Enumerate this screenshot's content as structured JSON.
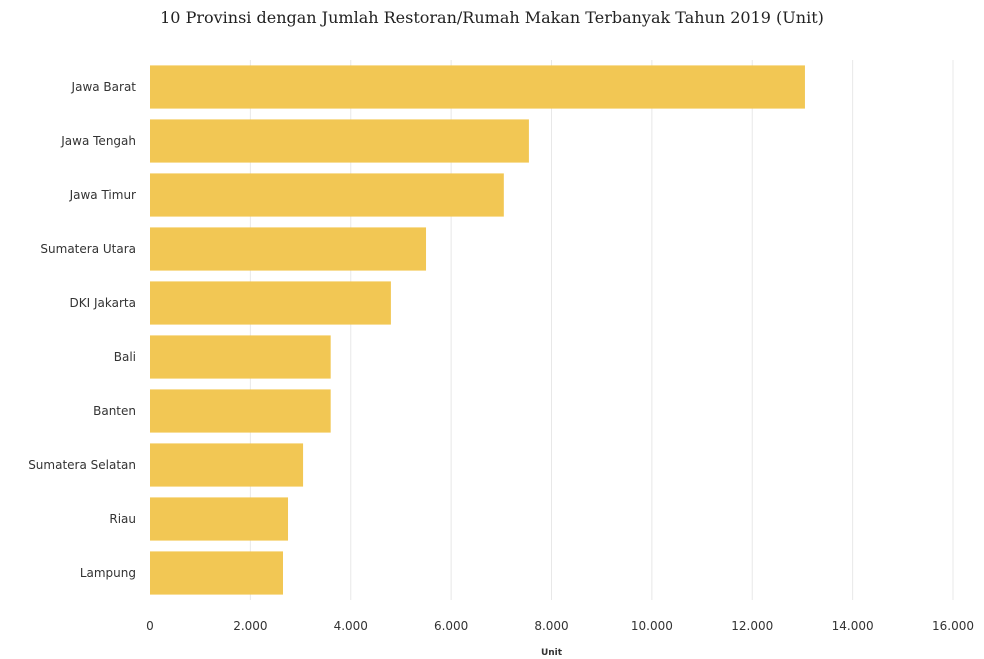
{
  "chart_data": {
    "type": "bar",
    "orientation": "horizontal",
    "title": "10 Provinsi dengan Jumlah Restoran/Rumah Makan Terbanyak Tahun 2019 (Unit)",
    "xlabel": "Unit",
    "ylabel": "",
    "categories": [
      "Jawa Barat",
      "Jawa Tengah",
      "Jawa Timur",
      "Sumatera Utara",
      "DKI Jakarta",
      "Bali",
      "Banten",
      "Sumatera Selatan",
      "Riau",
      "Lampung"
    ],
    "values": [
      13050,
      7550,
      7050,
      5500,
      4800,
      3600,
      3600,
      3050,
      2750,
      2650
    ],
    "xlim": [
      0,
      16000
    ],
    "xticks": [
      0,
      2000,
      4000,
      6000,
      8000,
      10000,
      12000,
      14000,
      16000
    ],
    "xtick_labels": [
      "0",
      "2.000",
      "4.000",
      "6.000",
      "8.000",
      "10.000",
      "12.000",
      "14.000",
      "16.000"
    ],
    "bar_color": "#F2C754",
    "grid": true,
    "grid_color": "#e8e8e8"
  }
}
